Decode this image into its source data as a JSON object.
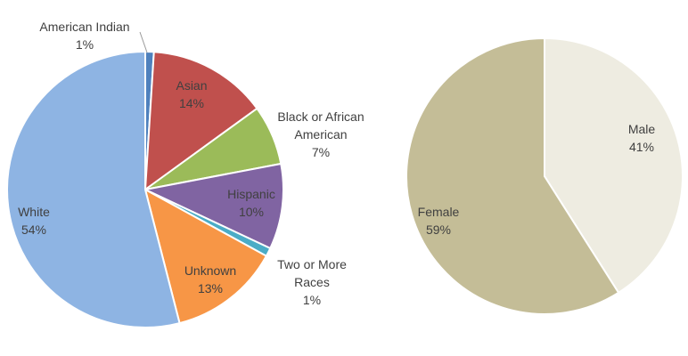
{
  "chart_data": [
    {
      "type": "pie",
      "categories": [
        "American Indian",
        "Asian",
        "Black or African American",
        "Hispanic",
        "Two or More Races",
        "Unknown",
        "White"
      ],
      "values": [
        1,
        14,
        7,
        10,
        1,
        13,
        54
      ],
      "value_labels": [
        "1%",
        "14%",
        "7%",
        "10%",
        "1%",
        "13%",
        "54%"
      ],
      "colors": [
        "#4f81bd",
        "#c0504d",
        "#9bbb59",
        "#8064a2",
        "#4bacc6",
        "#f79646",
        "#8eb4e3"
      ]
    },
    {
      "type": "pie",
      "categories": [
        "Male",
        "Female"
      ],
      "values": [
        41,
        59
      ],
      "value_labels": [
        "41%",
        "59%"
      ],
      "colors": [
        "#eeece1",
        "#c4bd97"
      ]
    }
  ]
}
